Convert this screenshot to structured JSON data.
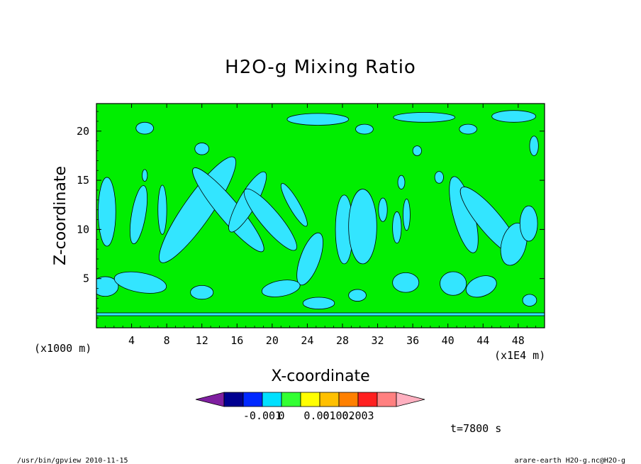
{
  "chart_data": {
    "type": "heatmap",
    "title": "H2O-g Mixing Ratio",
    "xlabel": "X-coordinate",
    "ylabel": "Z-coordinate",
    "x_unit_left": "(x1000 m)",
    "x_unit_right": "(x1E4 m)",
    "x_range": [
      0,
      51
    ],
    "y_range": [
      0,
      22.8
    ],
    "x_ticks": [
      "4",
      "8",
      "12",
      "16",
      "20",
      "24",
      "28",
      "32",
      "36",
      "40",
      "44",
      "48"
    ],
    "y_ticks": [
      "5",
      "10",
      "15",
      "20"
    ],
    "background_level": "0 to 0.001",
    "colorbar": {
      "levels": [
        "-0.001",
        "0",
        "0.001",
        "0.002",
        "0.003"
      ],
      "colors": [
        "#7f1fa0",
        "#000090",
        "#0028ff",
        "#00e0ff",
        "#33ff33",
        "#ffff00",
        "#ffc000",
        "#ff8000",
        "#ff2020",
        "#ff8080",
        "#ffb0c0"
      ]
    },
    "time_label": "t=7800 s",
    "anomaly_color": "#33e5ff",
    "field_color": "#00ee00",
    "blobs": [
      {
        "x": 11.5,
        "z": 12.0,
        "w": 1.6,
        "h": 6.5,
        "rot": 35
      },
      {
        "x": 15.0,
        "z": 12.0,
        "w": 1.2,
        "h": 5.5,
        "rot": -40
      },
      {
        "x": 17.2,
        "z": 12.8,
        "w": 1.0,
        "h": 3.5,
        "rot": 30
      },
      {
        "x": 19.8,
        "z": 11.0,
        "w": 1.1,
        "h": 4.0,
        "rot": -40
      },
      {
        "x": 22.5,
        "z": 12.5,
        "w": 0.6,
        "h": 2.5,
        "rot": -30
      },
      {
        "x": 24.3,
        "z": 7.0,
        "w": 1.1,
        "h": 2.8,
        "rot": 20
      },
      {
        "x": 28.2,
        "z": 10.0,
        "w": 1.0,
        "h": 3.5,
        "rot": 0
      },
      {
        "x": 30.3,
        "z": 10.3,
        "w": 1.6,
        "h": 3.8,
        "rot": 0
      },
      {
        "x": 32.6,
        "z": 12.0,
        "w": 0.5,
        "h": 1.2,
        "rot": 0
      },
      {
        "x": 34.2,
        "z": 10.2,
        "w": 0.5,
        "h": 1.6,
        "rot": 0
      },
      {
        "x": 35.3,
        "z": 11.5,
        "w": 0.4,
        "h": 1.6,
        "rot": 0
      },
      {
        "x": 41.8,
        "z": 11.5,
        "w": 1.2,
        "h": 4.0,
        "rot": -15
      },
      {
        "x": 44.8,
        "z": 10.8,
        "w": 1.3,
        "h": 4.5,
        "rot": -40
      },
      {
        "x": 47.5,
        "z": 8.5,
        "w": 1.4,
        "h": 2.2,
        "rot": 15
      },
      {
        "x": 49.2,
        "z": 10.6,
        "w": 1.0,
        "h": 1.8,
        "rot": 0
      },
      {
        "x": 1.2,
        "z": 11.8,
        "w": 1.0,
        "h": 3.5,
        "rot": 0
      },
      {
        "x": 4.8,
        "z": 11.5,
        "w": 0.8,
        "h": 3.0,
        "rot": 10
      },
      {
        "x": 7.5,
        "z": 12.0,
        "w": 0.5,
        "h": 2.5,
        "rot": 0
      },
      {
        "x": 1.0,
        "z": 4.2,
        "w": 1.5,
        "h": 1.0,
        "rot": 0
      },
      {
        "x": 5.0,
        "z": 4.6,
        "w": 3.0,
        "h": 1.0,
        "rot": 10
      },
      {
        "x": 12.0,
        "z": 3.6,
        "w": 1.3,
        "h": 0.7,
        "rot": 0
      },
      {
        "x": 21.0,
        "z": 4.0,
        "w": 2.2,
        "h": 0.8,
        "rot": -10
      },
      {
        "x": 25.3,
        "z": 2.5,
        "w": 1.8,
        "h": 0.6,
        "rot": 0
      },
      {
        "x": 29.7,
        "z": 3.3,
        "w": 1.0,
        "h": 0.6,
        "rot": 0
      },
      {
        "x": 35.2,
        "z": 4.6,
        "w": 1.5,
        "h": 1.0,
        "rot": 0
      },
      {
        "x": 40.6,
        "z": 4.5,
        "w": 1.5,
        "h": 1.2,
        "rot": 0
      },
      {
        "x": 43.8,
        "z": 4.2,
        "w": 1.8,
        "h": 1.0,
        "rot": -20
      },
      {
        "x": 49.3,
        "z": 2.8,
        "w": 0.8,
        "h": 0.6,
        "rot": 0
      },
      {
        "x": 25.2,
        "z": 21.2,
        "w": 3.5,
        "h": 0.6,
        "rot": 0
      },
      {
        "x": 37.3,
        "z": 21.4,
        "w": 3.5,
        "h": 0.5,
        "rot": 0
      },
      {
        "x": 47.5,
        "z": 21.5,
        "w": 2.5,
        "h": 0.6,
        "rot": 0
      },
      {
        "x": 5.5,
        "z": 20.3,
        "w": 1.0,
        "h": 0.6,
        "rot": 0
      },
      {
        "x": 30.5,
        "z": 20.2,
        "w": 1.0,
        "h": 0.5,
        "rot": 0
      },
      {
        "x": 42.3,
        "z": 20.2,
        "w": 1.0,
        "h": 0.5,
        "rot": 0
      },
      {
        "x": 12.0,
        "z": 18.2,
        "w": 0.8,
        "h": 0.6,
        "rot": 0
      },
      {
        "x": 36.5,
        "z": 18.0,
        "w": 0.5,
        "h": 0.5,
        "rot": 0
      },
      {
        "x": 49.8,
        "z": 18.5,
        "w": 0.5,
        "h": 1.0,
        "rot": 0
      },
      {
        "x": 5.5,
        "z": 15.5,
        "w": 0.3,
        "h": 0.6,
        "rot": 0
      },
      {
        "x": 34.7,
        "z": 14.8,
        "w": 0.4,
        "h": 0.7,
        "rot": 0
      },
      {
        "x": 39.0,
        "z": 15.3,
        "w": 0.5,
        "h": 0.6,
        "rot": 0
      }
    ]
  },
  "footer": {
    "left": "/usr/bin/gpview  2010-11-15",
    "right": "arare-earth_H2O-g.nc@H2O-g"
  }
}
